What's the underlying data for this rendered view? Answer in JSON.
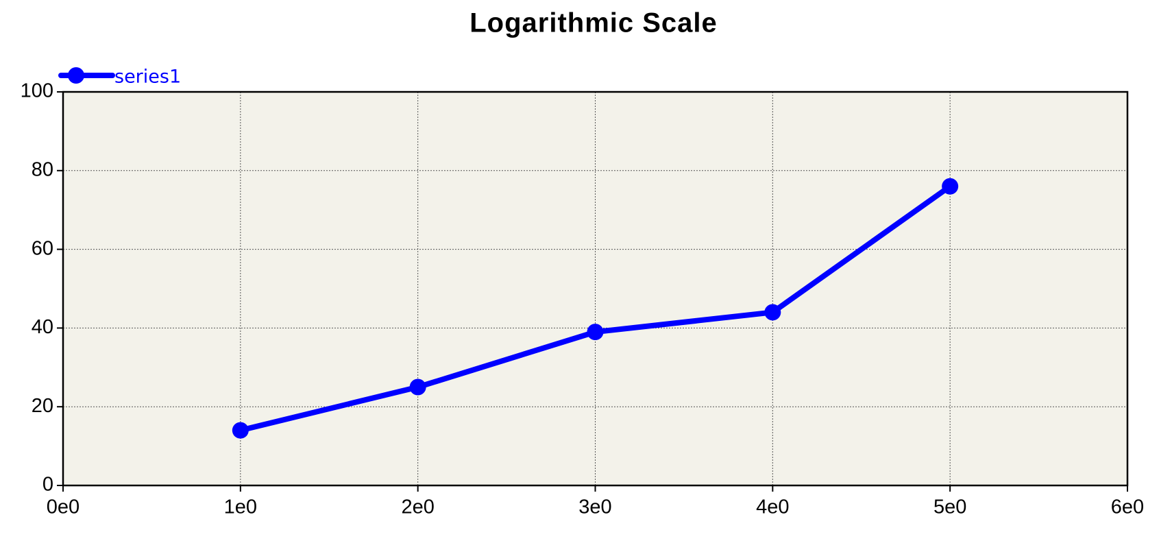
{
  "chart_data": {
    "type": "line",
    "title": "Logarithmic Scale",
    "x": [
      1,
      2,
      3,
      4,
      5
    ],
    "series": [
      {
        "name": "series1",
        "color": "#0000ff",
        "values": [
          14,
          25,
          39,
          44,
          76
        ]
      }
    ],
    "xlim": [
      0,
      6
    ],
    "xticks": [
      {
        "value": 0,
        "label": "0e0"
      },
      {
        "value": 1,
        "label": "1e0"
      },
      {
        "value": 2,
        "label": "2e0"
      },
      {
        "value": 3,
        "label": "3e0"
      },
      {
        "value": 4,
        "label": "4e0"
      },
      {
        "value": 5,
        "label": "5e0"
      },
      {
        "value": 6,
        "label": "6e0"
      }
    ],
    "ylim": [
      0,
      100
    ],
    "yticks": [
      0,
      20,
      40,
      60,
      80,
      100
    ],
    "grid": true,
    "legend": "top-left"
  }
}
